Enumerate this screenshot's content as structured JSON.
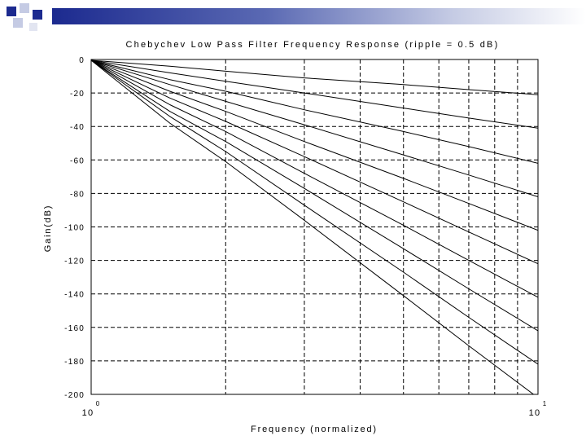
{
  "chart_data": {
    "type": "line",
    "title": "Chebychev Low Pass Filter Frequency Response (ripple = 0.5 dB)",
    "xlabel": "Frequency (normalized)",
    "ylabel": "Gain(dB)",
    "x_scale": "log",
    "xlim": [
      1,
      10
    ],
    "ylim": [
      -200,
      0
    ],
    "x_ticks": [
      {
        "value": 1,
        "base": "10",
        "exp": "0"
      },
      {
        "value": 10,
        "base": "10",
        "exp": "1"
      }
    ],
    "y_ticks": [
      "0",
      "-20",
      "-40",
      "-60",
      "-80",
      "-100",
      "-120",
      "-140",
      "-160",
      "-180",
      "-200"
    ],
    "grid": true,
    "series": [
      {
        "order": 1,
        "x": [
          1,
          1.5,
          2,
          3,
          5,
          7,
          10
        ],
        "y": [
          -0.5,
          -4,
          -7,
          -11,
          -15,
          -18,
          -21
        ]
      },
      {
        "order": 2,
        "x": [
          1,
          1.5,
          2,
          3,
          5,
          7,
          10
        ],
        "y": [
          -0.5,
          -8,
          -13,
          -20,
          -29,
          -35,
          -41
        ]
      },
      {
        "order": 3,
        "x": [
          1,
          1.5,
          2,
          3,
          5,
          7,
          10
        ],
        "y": [
          -0.5,
          -12,
          -19,
          -30,
          -43,
          -52,
          -62
        ]
      },
      {
        "order": 4,
        "x": [
          1,
          1.5,
          2,
          3,
          5,
          7,
          10
        ],
        "y": [
          -0.5,
          -15,
          -25,
          -39,
          -57,
          -69,
          -82
        ]
      },
      {
        "order": 5,
        "x": [
          1,
          1.5,
          2,
          3,
          5,
          7,
          10
        ],
        "y": [
          -0.5,
          -19,
          -31,
          -49,
          -71,
          -86,
          -102
        ]
      },
      {
        "order": 6,
        "x": [
          1,
          1.5,
          2,
          3,
          5,
          7,
          10
        ],
        "y": [
          -0.5,
          -23,
          -37,
          -58,
          -85,
          -103,
          -122
        ]
      },
      {
        "order": 7,
        "x": [
          1,
          1.5,
          2,
          3,
          5,
          7,
          10
        ],
        "y": [
          -0.5,
          -27,
          -43,
          -68,
          -99,
          -120,
          -142
        ]
      },
      {
        "order": 8,
        "x": [
          1,
          1.5,
          2,
          3,
          5,
          7,
          10
        ],
        "y": [
          -0.5,
          -31,
          -49,
          -77,
          -113,
          -137,
          -162
        ]
      },
      {
        "order": 9,
        "x": [
          1,
          1.5,
          2,
          3,
          5,
          7,
          10
        ],
        "y": [
          -0.5,
          -34,
          -55,
          -87,
          -127,
          -154,
          -182
        ]
      },
      {
        "order": 10,
        "x": [
          1,
          1.5,
          2,
          3,
          5,
          7,
          10
        ],
        "y": [
          -0.5,
          -38,
          -61,
          -96,
          -141,
          -171,
          -202
        ]
      }
    ]
  }
}
